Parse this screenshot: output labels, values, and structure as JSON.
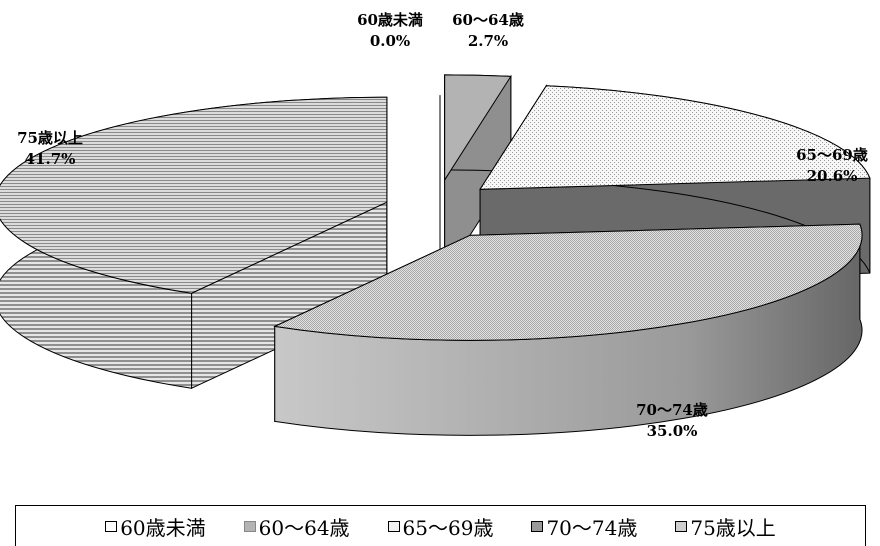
{
  "chart_data": {
    "type": "pie",
    "style": "3d-exploded",
    "categories": [
      "60歳未満",
      "60～64歳",
      "65～69歳",
      "70～74歳",
      "75歳以上"
    ],
    "values": [
      0.0,
      2.7,
      20.6,
      35.0,
      41.7
    ],
    "value_labels": [
      "0.0%",
      "2.7%",
      "20.6%",
      "35.0%",
      "41.7%"
    ],
    "unit": "%",
    "legend_position": "bottom",
    "colors": {
      "60歳未満": {
        "top": "#ffffff",
        "side": "#f0f0f0"
      },
      "60～64歳": {
        "top": "#b3b3b3",
        "side": "#8f8f8f"
      },
      "65～69歳": {
        "top": "#f2f2f2",
        "side": "#6a6a6a"
      },
      "70～74歳": {
        "top": "#d6d6d6",
        "side": "#a5a5a5"
      },
      "75歳以上": {
        "top": "#d0d0d0",
        "side": "#b8b8b8"
      }
    }
  }
}
